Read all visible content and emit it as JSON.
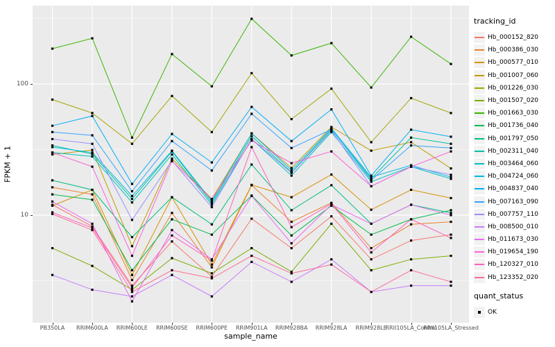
{
  "figure": {
    "xlabel": "sample_name",
    "ylabel": "FPKM + 1",
    "legend_title": "tracking_id",
    "quant_legend_title": "quant_status",
    "quant_ok_label": "OK"
  },
  "colors": {
    "panel_bg": "#EBEBEB",
    "grid": "#FFFFFF",
    "tick_label": "#4D4D4D",
    "legend_key_bg": "#F2F2F2",
    "point": "#000000"
  },
  "chart_data": {
    "type": "line",
    "title": "",
    "xlabel": "sample_name",
    "ylabel": "FPKM + 1",
    "y_scale": "log10",
    "y_ticks": [
      100,
      10
    ],
    "y_minor_ticks": [
      316.2,
      31.62,
      3.162
    ],
    "ylim": [
      1.7,
      400
    ],
    "grid": true,
    "legend_position": "right",
    "point_marker": {
      "shape": "square",
      "color": "#000000",
      "label": "OK"
    },
    "categories": [
      "PB350LA",
      "RRIM600LA",
      "RRIM600LE",
      "RRIM600SE",
      "RRIM600PE",
      "RRIM901LA",
      "RRIM928BA",
      "RRIM928LA",
      "RRIM928LE",
      "RRII105LA_Control",
      "RRII105LA_Stressed"
    ],
    "series": [
      {
        "name": "Hb_000152_820",
        "color": "#F8766D",
        "values": [
          12,
          8.2,
          2.9,
          6.3,
          3.4,
          9.4,
          5.6,
          9.8,
          4.6,
          6.4,
          7.1
        ]
      },
      {
        "name": "Hb_000386_030",
        "color": "#EA8331",
        "values": [
          16.3,
          14.4,
          3.2,
          10.4,
          4.0,
          16.9,
          8.9,
          12.4,
          5.6,
          8.5,
          8.9
        ]
      },
      {
        "name": "Hb_000577_010",
        "color": "#D89000",
        "values": [
          11.8,
          15.6,
          3.5,
          13.7,
          4.2,
          17.0,
          13.7,
          20.4,
          11.0,
          15.6,
          13.5
        ]
      },
      {
        "name": "Hb_001007_060",
        "color": "#C09B00",
        "values": [
          29,
          31.4,
          5.8,
          27,
          13.3,
          42,
          22.9,
          47,
          31,
          36,
          22.7
        ]
      },
      {
        "name": "Hb_001226_030",
        "color": "#A3A500",
        "values": [
          76,
          60,
          35,
          81,
          43,
          121,
          54,
          92,
          36,
          78,
          60
        ]
      },
      {
        "name": "Hb_001507_020",
        "color": "#7CAE00",
        "values": [
          5.6,
          4.1,
          2.7,
          4.7,
          3.6,
          5.6,
          3.7,
          8.6,
          3.8,
          4.6,
          4.9
        ]
      },
      {
        "name": "Hb_001663_030",
        "color": "#39B600",
        "values": [
          186,
          223,
          39,
          169,
          96,
          314,
          165,
          205,
          94,
          229,
          142
        ]
      },
      {
        "name": "Hb_001736_040",
        "color": "#00BB4E",
        "values": [
          14.4,
          13.1,
          3.8,
          9.3,
          7.1,
          14.1,
          7.0,
          11.8,
          7.1,
          9.3,
          10.9
        ]
      },
      {
        "name": "Hb_001797_050",
        "color": "#00BF7D",
        "values": [
          18.4,
          15.6,
          6.8,
          13.7,
          8.5,
          24.3,
          10.9,
          16.9,
          8.6,
          12.0,
          10.4
        ]
      },
      {
        "name": "Hb_002311_040",
        "color": "#00C1A3",
        "values": [
          34,
          29.2,
          13.3,
          30.6,
          12.4,
          40,
          21.2,
          45,
          19,
          39,
          35
        ]
      },
      {
        "name": "Hb_003464_060",
        "color": "#00BFC4",
        "values": [
          30,
          28,
          12.5,
          29,
          12.0,
          38,
          20,
          43,
          18,
          23.4,
          18.9
        ]
      },
      {
        "name": "Hb_004724_060",
        "color": "#00BAE0",
        "values": [
          33,
          30,
          14.0,
          31,
          12.8,
          42,
          22,
          46,
          19.5,
          24,
          19.5
        ]
      },
      {
        "name": "Hb_004837_040",
        "color": "#00B0F6",
        "values": [
          48,
          57,
          17.3,
          41.6,
          25.2,
          66.8,
          36.7,
          64,
          20,
          44.8,
          39.6
        ]
      },
      {
        "name": "Hb_007163_090",
        "color": "#35A2FF",
        "values": [
          43,
          40.6,
          15.2,
          36.7,
          21.9,
          59.2,
          32.5,
          45,
          18.5,
          34,
          32.5
        ]
      },
      {
        "name": "Hb_007757_110",
        "color": "#9590FF",
        "values": [
          38,
          35,
          9.2,
          26,
          11.5,
          38,
          21,
          44,
          16.6,
          23.4,
          20.3
        ]
      },
      {
        "name": "Hb_008500_010",
        "color": "#C77CFF",
        "values": [
          3.5,
          2.7,
          2.4,
          3.5,
          2.4,
          4.4,
          3.1,
          4.6,
          2.6,
          2.9,
          2.9
        ]
      },
      {
        "name": "Hb_011673_030",
        "color": "#E76BF3",
        "values": [
          12.7,
          8.6,
          2.2,
          7.7,
          4.6,
          14.0,
          6.1,
          12.0,
          8.6,
          12.0,
          10.0
        ]
      },
      {
        "name": "Hb_019654_190",
        "color": "#FA62DB",
        "values": [
          30,
          23.4,
          4.9,
          25.8,
          13.2,
          37,
          24.9,
          30.6,
          16.6,
          23.4,
          30.6
        ]
      },
      {
        "name": "Hb_120327_010",
        "color": "#FF62BC",
        "values": [
          10.5,
          8.0,
          2.8,
          7.0,
          4.5,
          33,
          8.1,
          12.2,
          5.2,
          9.3,
          6.7
        ]
      },
      {
        "name": "Hb_123352_020",
        "color": "#FF6A98",
        "values": [
          10.2,
          7.7,
          2.6,
          3.8,
          3.3,
          4.9,
          3.6,
          4.2,
          2.6,
          3.8,
          3.1
        ]
      }
    ]
  }
}
